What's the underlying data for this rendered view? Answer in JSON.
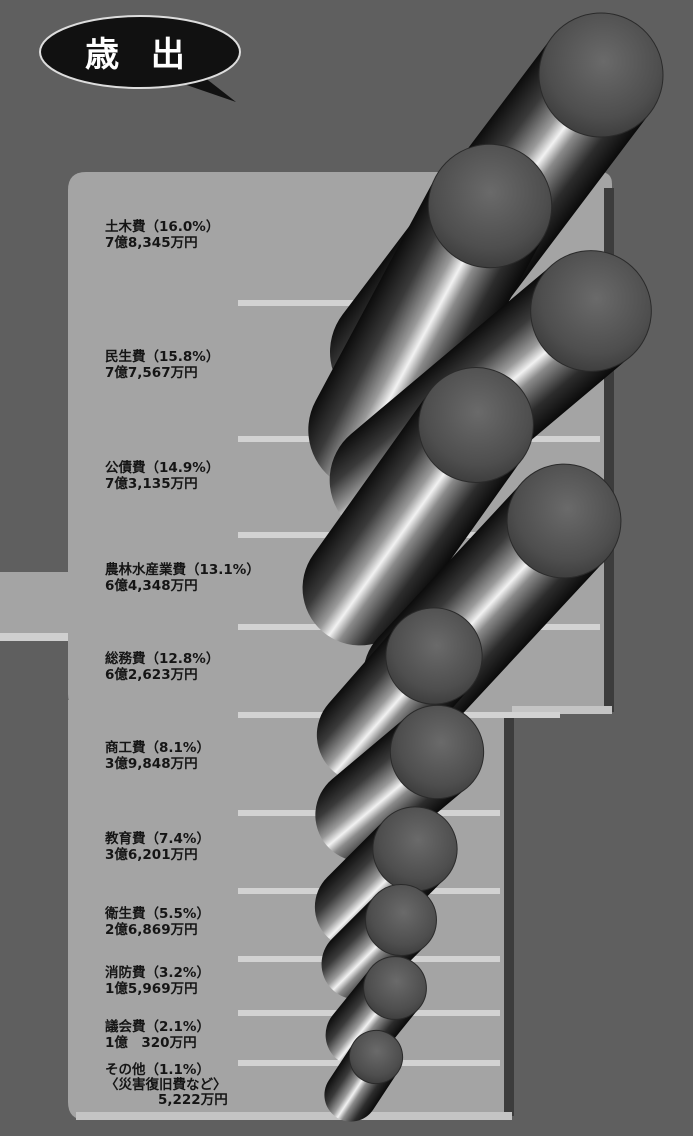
{
  "title": "歳 出",
  "chart_data": {
    "type": "bar",
    "title": "歳 出",
    "categories": [
      "土木費",
      "民生費",
      "公債費",
      "農林水産業費",
      "総務費",
      "商工費",
      "教育費",
      "衛生費",
      "消防費",
      "議会費",
      "その他"
    ],
    "percent_labels": [
      "（16.0%）",
      "（15.8%）",
      "（14.9%）",
      "（13.1%）",
      "（12.8%）",
      "（8.1%）",
      "（7.4%）",
      "（5.5%）",
      "（3.2%）",
      "（2.1%）",
      "（1.1%）"
    ],
    "percent_values": [
      16.0,
      15.8,
      14.9,
      13.1,
      12.8,
      8.1,
      7.4,
      5.5,
      3.2,
      2.1,
      1.1
    ],
    "amount_labels": [
      "7億8,345万円",
      "7億7,567万円",
      "7億3,135万円",
      "6億4,348万円",
      "6億2,623万円",
      "3億9,848万円",
      "3億6,201万円",
      "2億6,869万円",
      "1億5,969万円",
      "1億　320万円",
      "5,222万円"
    ],
    "amount_values_man_yen": [
      78345,
      77567,
      73135,
      64348,
      62623,
      39848,
      36201,
      26869,
      15969,
      10320,
      5222
    ],
    "sub_note": "〈災害復旧費など〉"
  },
  "colors": {
    "background": "#5f5f5f",
    "panel": "#a4a4a4",
    "panel_edge": "#cfcfcf",
    "text": "#151515",
    "bubble": "#111111"
  }
}
